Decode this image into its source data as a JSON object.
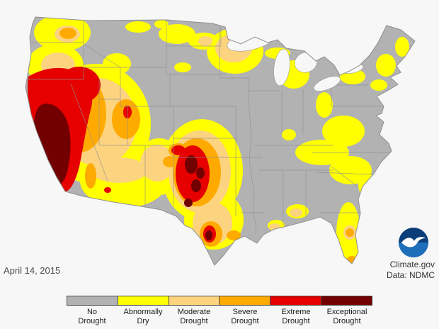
{
  "map": {
    "date_label": "April 14, 2015"
  },
  "attribution": {
    "source": "Climate.gov",
    "data_credit": "Data: NDMC"
  },
  "colors": {
    "bg": "#f7f7f7",
    "none": "#b2b2b2",
    "d0": "#ffff00",
    "d1": "#fcd37f",
    "d2": "#ffaa00",
    "d3": "#e60000",
    "d4": "#730000",
    "lake": "#f7f7f7",
    "stateline": "#8f8f8f",
    "text": "#4d4d4d"
  },
  "legend": {
    "items": [
      {
        "key": "no-drought",
        "label_line1": "No",
        "label_line2": "Drought",
        "color": "#b2b2b2"
      },
      {
        "key": "abnormally-dry",
        "label_line1": "Abnormally",
        "label_line2": "Dry",
        "color": "#ffff00"
      },
      {
        "key": "moderate-drought",
        "label_line1": "Moderate",
        "label_line2": "Drought",
        "color": "#fcd37f"
      },
      {
        "key": "severe-drought",
        "label_line1": "Severe",
        "label_line2": "Drought",
        "color": "#ffaa00"
      },
      {
        "key": "extreme-drought",
        "label_line1": "Extreme",
        "label_line2": "Drought",
        "color": "#e60000"
      },
      {
        "key": "exceptional-drought",
        "label_line1": "Exceptional",
        "label_line2": "Drought",
        "color": "#730000"
      }
    ]
  }
}
